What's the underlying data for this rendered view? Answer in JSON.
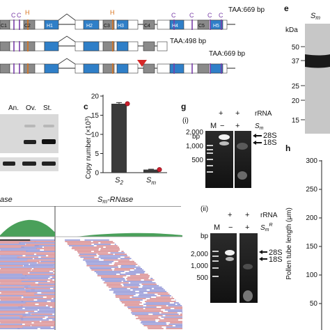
{
  "panel_labels": {
    "c": "c",
    "e": "e",
    "g": "g",
    "h": "h"
  },
  "gene_diagram": {
    "row1_label": "TAA:669 bp",
    "row2_label": "TAA:498 bp",
    "row3_label": "TAA:669 bp",
    "region_labels": [
      "C1",
      "C2",
      "H1",
      "H2",
      "C3",
      "H3",
      "C4",
      "H4",
      "C5",
      "H5"
    ],
    "site_letters_c": "C",
    "site_letters_h": "H",
    "colors": {
      "conserved": "#8a8a8a",
      "hyper": "#2f7fc8",
      "c_site": "#7a3ea8",
      "h_site": "#d9741f",
      "arrow": "#d62828"
    }
  },
  "rt_pcr": {
    "lanes": [
      "An.",
      "Ov.",
      "St."
    ],
    "label_fragment": "ase"
  },
  "chart_data": {
    "type": "bar",
    "categories": [
      "S2",
      "Sm"
    ],
    "category_main": [
      "S",
      "S"
    ],
    "category_sub": [
      "2",
      "m"
    ],
    "values": [
      18.0,
      0.8
    ],
    "errors": [
      0.3,
      0.1
    ],
    "ylabel_main": "Copy number (×10",
    "ylabel_exp": "3",
    "ylabel_end": ")",
    "ylim": [
      0,
      20
    ],
    "yticks": [
      0,
      5,
      10,
      15,
      20
    ],
    "ytick_labels": [
      "0",
      "5",
      "10",
      "15",
      "20"
    ],
    "bar_color": "#3a3a3a",
    "dot_color": "#cc1f2d"
  },
  "coverage": {
    "left_label": "ase",
    "right_main": "S",
    "right_sub": "m",
    "right_suffix": "-RNase",
    "track_color": "#4aa05a"
  },
  "gel_g": {
    "sub_i": "(i)",
    "sub_ii": "(ii)",
    "top_row": [
      "+",
      "+",
      "rRNA"
    ],
    "second_row_i": [
      "−",
      "+"
    ],
    "second_row_ii": [
      "−",
      "+"
    ],
    "sample_main": "S",
    "sample_sub": "m",
    "sample_sup_ii": "R",
    "marker_lane": "M",
    "bp_unit": "bp",
    "size_labels": [
      "2,000",
      "1,000",
      "500"
    ],
    "band_labels": [
      "28S",
      "18S"
    ]
  },
  "gel_e": {
    "header_main": "S",
    "header_sub": "m",
    "kda_unit": "kDa",
    "kda_labels": [
      "50",
      "37",
      "25",
      "20",
      "15"
    ]
  },
  "pollen": {
    "ylabel": "Pollen tube length (μm)",
    "ytick_labels": [
      "300",
      "250",
      "200",
      "150",
      "100",
      "50"
    ]
  }
}
